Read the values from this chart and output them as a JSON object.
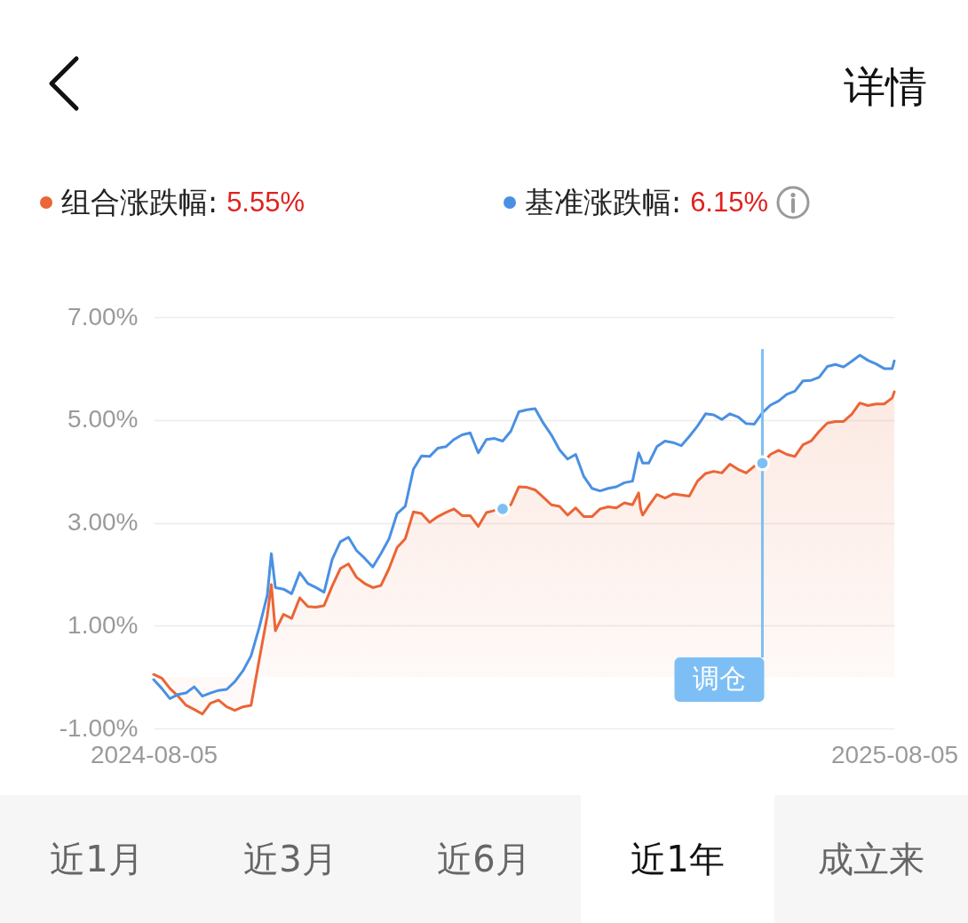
{
  "chart_data": {
    "type": "line",
    "x": [
      "2024-08-05",
      "2024-08-09",
      "2024-08-13",
      "2024-08-17",
      "2024-08-21",
      "2024-08-25",
      "2024-08-29",
      "2024-09-02",
      "2024-09-06",
      "2024-09-10",
      "2024-09-14",
      "2024-09-18",
      "2024-09-22",
      "2024-09-26",
      "2024-09-30",
      "2024-10-02",
      "2024-10-04",
      "2024-10-08",
      "2024-10-12",
      "2024-10-16",
      "2024-10-20",
      "2024-10-24",
      "2024-10-28",
      "2024-11-01",
      "2024-11-05",
      "2024-11-09",
      "2024-11-13",
      "2024-11-17",
      "2024-11-21",
      "2024-11-25",
      "2024-11-29",
      "2024-12-03",
      "2024-12-07",
      "2024-12-11",
      "2024-12-15",
      "2024-12-19",
      "2024-12-23",
      "2024-12-27",
      "2024-12-31",
      "2025-01-04",
      "2025-01-08",
      "2025-01-12",
      "2025-01-16",
      "2025-01-20",
      "2025-01-24",
      "2025-01-28",
      "2025-02-01",
      "2025-02-05",
      "2025-02-09",
      "2025-02-13",
      "2025-02-17",
      "2025-02-21",
      "2025-02-25",
      "2025-03-01",
      "2025-03-05",
      "2025-03-09",
      "2025-03-13",
      "2025-03-17",
      "2025-03-21",
      "2025-03-25",
      "2025-03-29",
      "2025-04-01",
      "2025-04-02",
      "2025-04-03",
      "2025-04-06",
      "2025-04-10",
      "2025-04-14",
      "2025-04-18",
      "2025-04-22",
      "2025-04-26",
      "2025-04-30",
      "2025-05-04",
      "2025-05-08",
      "2025-05-12",
      "2025-05-16",
      "2025-05-20",
      "2025-05-24",
      "2025-05-28",
      "2025-06-01",
      "2025-06-05",
      "2025-06-09",
      "2025-06-13",
      "2025-06-17",
      "2025-06-21",
      "2025-06-25",
      "2025-06-29",
      "2025-07-03",
      "2025-07-07",
      "2025-07-11",
      "2025-07-15",
      "2025-07-19",
      "2025-07-23",
      "2025-07-27",
      "2025-07-31",
      "2025-08-04",
      "2025-08-05"
    ],
    "series": [
      {
        "name": "组合涨跌幅:",
        "type": "area",
        "color": "#eb6536",
        "values": [
          0.05,
          -0.02,
          -0.22,
          -0.37,
          -0.55,
          -0.63,
          -0.72,
          -0.51,
          -0.45,
          -0.58,
          -0.65,
          -0.58,
          -0.55,
          0.33,
          1.19,
          1.8,
          0.9,
          1.22,
          1.14,
          1.54,
          1.37,
          1.36,
          1.39,
          1.77,
          2.11,
          2.2,
          1.94,
          1.82,
          1.74,
          1.78,
          2.11,
          2.52,
          2.69,
          3.21,
          3.18,
          3.01,
          3.12,
          3.2,
          3.27,
          3.14,
          3.14,
          2.93,
          3.2,
          3.24,
          3.27,
          3.35,
          3.7,
          3.69,
          3.64,
          3.5,
          3.35,
          3.32,
          3.15,
          3.29,
          3.12,
          3.12,
          3.27,
          3.31,
          3.29,
          3.39,
          3.35,
          3.58,
          3.27,
          3.15,
          3.33,
          3.55,
          3.48,
          3.56,
          3.54,
          3.52,
          3.81,
          3.96,
          4.0,
          3.97,
          4.14,
          4.04,
          3.97,
          4.1,
          4.16,
          4.33,
          4.41,
          4.33,
          4.29,
          4.52,
          4.59,
          4.78,
          4.94,
          4.97,
          4.97,
          5.11,
          5.33,
          5.28,
          5.31,
          5.31,
          5.43,
          5.55
        ]
      },
      {
        "name": "基准涨跌幅:",
        "type": "line",
        "color": "#4a90e2",
        "values": [
          -0.05,
          -0.22,
          -0.42,
          -0.34,
          -0.31,
          -0.19,
          -0.37,
          -0.31,
          -0.26,
          -0.24,
          -0.09,
          0.12,
          0.41,
          0.96,
          1.59,
          2.4,
          1.74,
          1.71,
          1.62,
          2.03,
          1.82,
          1.74,
          1.65,
          2.29,
          2.63,
          2.72,
          2.46,
          2.31,
          2.14,
          2.4,
          2.69,
          3.18,
          3.32,
          4.04,
          4.3,
          4.29,
          4.45,
          4.48,
          4.62,
          4.71,
          4.75,
          4.36,
          4.62,
          4.64,
          4.59,
          4.78,
          5.16,
          5.2,
          5.22,
          4.94,
          4.71,
          4.42,
          4.24,
          4.33,
          3.9,
          3.67,
          3.62,
          3.67,
          3.7,
          3.78,
          3.81,
          4.36,
          4.27,
          4.16,
          4.16,
          4.48,
          4.59,
          4.56,
          4.5,
          4.68,
          4.88,
          5.12,
          5.1,
          5.01,
          5.12,
          5.06,
          4.93,
          4.92,
          5.14,
          5.29,
          5.37,
          5.5,
          5.56,
          5.76,
          5.77,
          5.83,
          6.04,
          6.08,
          6.03,
          6.14,
          6.26,
          6.16,
          6.09,
          6.0,
          6.0,
          6.15
        ]
      },
      {
        "type": "scatter",
        "marker": "circle",
        "color": "#7dbff5",
        "x": [
          "2025-01-24",
          "2025-06-01"
        ],
        "values": [
          3.27,
          4.16
        ]
      }
    ],
    "xlim": [
      "2024-08-05",
      "2025-08-05"
    ],
    "xticks": [
      "2024-08-05",
      "2025-08-05"
    ],
    "ylim": [
      -1,
      7
    ],
    "yticks": [
      {
        "value": -1,
        "label": "-1.00%"
      },
      {
        "value": 1,
        "label": "1.00%"
      },
      {
        "value": 3,
        "label": "3.00%"
      },
      {
        "value": 5,
        "label": "5.00%"
      },
      {
        "value": 7,
        "label": "7.00%"
      }
    ],
    "grid": "y",
    "legend": "top",
    "ref_lines": [
      {
        "axis": "x",
        "value": "2025-06-01",
        "label": "调仓",
        "color": "#7dbff5"
      }
    ],
    "annotations": [
      "详情",
      "5.55%",
      "6.15%",
      "近1月",
      "近3月",
      "近6月",
      "近1年",
      "成立来"
    ]
  }
}
